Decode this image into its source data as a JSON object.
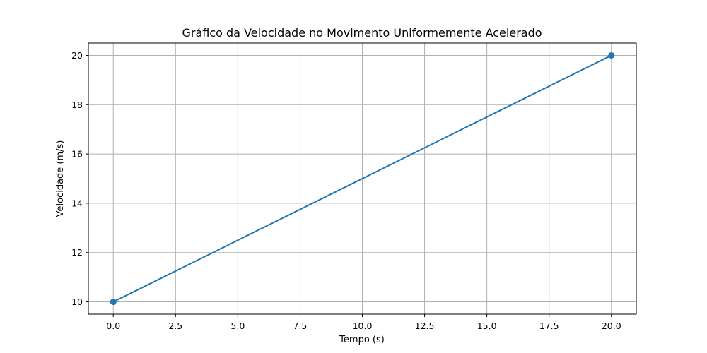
{
  "chart_data": {
    "type": "line",
    "title": "Gráfico da Velocidade no Movimento Uniformemente Acelerado",
    "xlabel": "Tempo (s)",
    "ylabel": "Velocidade (m/s)",
    "x": [
      0,
      20
    ],
    "series": [
      {
        "values": [
          10,
          20
        ],
        "color": "#1f77b4",
        "marker": "circle"
      }
    ],
    "xlim": [
      -1,
      21
    ],
    "ylim": [
      9.5,
      20.5
    ],
    "xticks": [
      "0.0",
      "2.5",
      "5.0",
      "7.5",
      "10.0",
      "12.5",
      "15.0",
      "17.5",
      "20.0"
    ],
    "yticks": [
      "10",
      "12",
      "14",
      "16",
      "18",
      "20"
    ],
    "grid": true
  }
}
